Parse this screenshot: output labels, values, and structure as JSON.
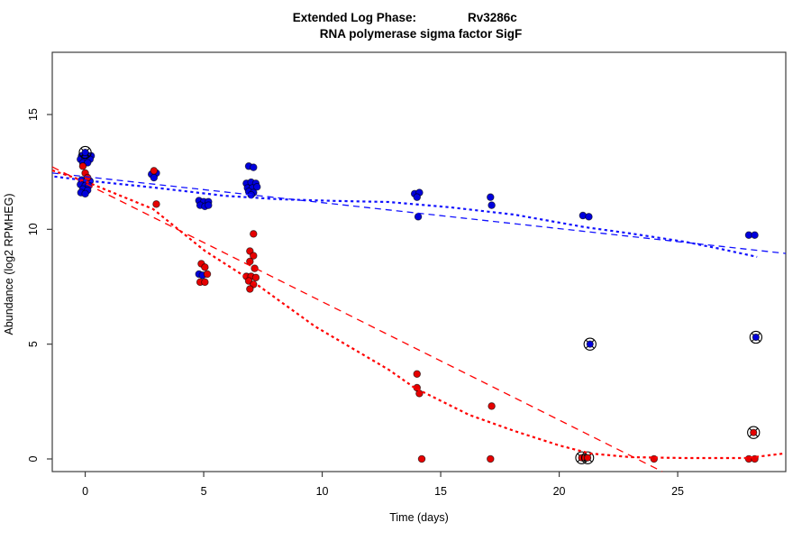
{
  "title": {
    "line1_left": "Extended Log Phase:",
    "line1_right": "Rv3286c",
    "line2": "RNA polymerase sigma factor SigF"
  },
  "axes": {
    "xlabel": "Time (days)",
    "ylabel": "Abundance (log2 RPMHEG)"
  },
  "colors": {
    "blue_point": "#0000dd",
    "red_point": "#e60000",
    "blue_line": "#1111ff",
    "red_line": "#ff0000",
    "axis": "#3c3c3c",
    "marker_outline": "#000000"
  },
  "chart_data": {
    "type": "scatter",
    "title": "Extended Log Phase: Rv3286c — RNA polymerase sigma factor SigF",
    "xlabel": "Time (days)",
    "ylabel": "Abundance (log2 RPMHEG)",
    "xlim": [
      -1.39,
      29.56
    ],
    "ylim": [
      -0.55,
      17.71
    ],
    "x_ticks": [
      0,
      5,
      10,
      15,
      20,
      25
    ],
    "y_ticks": [
      0,
      5,
      10,
      15
    ],
    "grid": false,
    "legend": "none",
    "series": [
      {
        "name": "blue-abundance-points",
        "marker": "filled-circle",
        "color": "#0000dd",
        "points": [
          [
            -0.15,
            13.2
          ],
          [
            0.05,
            13.25
          ],
          [
            0.25,
            13.2
          ],
          [
            -0.2,
            13.05
          ],
          [
            0.0,
            13.1
          ],
          [
            0.2,
            13.05
          ],
          [
            -0.1,
            12.9
          ],
          [
            0.1,
            12.9
          ],
          [
            -0.15,
            12.15
          ],
          [
            0.05,
            12.1
          ],
          [
            0.2,
            12.1
          ],
          [
            -0.2,
            11.95
          ],
          [
            0.0,
            11.9
          ],
          [
            0.15,
            11.9
          ],
          [
            -0.1,
            11.75
          ],
          [
            0.1,
            11.7
          ],
          [
            -0.18,
            11.6
          ],
          [
            0.0,
            11.55
          ],
          [
            2.8,
            12.4
          ],
          [
            3.0,
            12.45
          ],
          [
            2.9,
            12.25
          ],
          [
            4.8,
            11.25
          ],
          [
            5.0,
            11.2
          ],
          [
            5.2,
            11.2
          ],
          [
            4.85,
            11.05
          ],
          [
            5.05,
            11.0
          ],
          [
            5.2,
            11.05
          ],
          [
            4.8,
            8.05
          ],
          [
            4.95,
            8.0
          ],
          [
            6.9,
            12.75
          ],
          [
            7.1,
            12.7
          ],
          [
            6.8,
            12.0
          ],
          [
            7.0,
            12.05
          ],
          [
            7.2,
            12.0
          ],
          [
            6.85,
            11.8
          ],
          [
            7.05,
            11.8
          ],
          [
            7.25,
            11.85
          ],
          [
            6.9,
            11.65
          ],
          [
            7.1,
            11.6
          ],
          [
            7.0,
            11.5
          ],
          [
            13.9,
            11.55
          ],
          [
            14.1,
            11.6
          ],
          [
            14.0,
            11.4
          ],
          [
            14.05,
            10.55
          ],
          [
            17.1,
            11.4
          ],
          [
            17.15,
            11.05
          ],
          [
            21.0,
            10.6
          ],
          [
            21.25,
            10.55
          ],
          [
            28.0,
            9.75
          ],
          [
            28.25,
            9.75
          ]
        ]
      },
      {
        "name": "red-abundance-points",
        "marker": "filled-circle",
        "color": "#e60000",
        "points": [
          [
            -0.1,
            12.75
          ],
          [
            0.0,
            12.45
          ],
          [
            0.1,
            12.25
          ],
          [
            2.9,
            12.55
          ],
          [
            3.0,
            11.1
          ],
          [
            4.9,
            8.5
          ],
          [
            5.05,
            8.35
          ],
          [
            5.15,
            8.05
          ],
          [
            4.85,
            7.7
          ],
          [
            5.05,
            7.7
          ],
          [
            7.1,
            9.8
          ],
          [
            6.95,
            9.05
          ],
          [
            7.1,
            8.85
          ],
          [
            6.95,
            8.6
          ],
          [
            7.15,
            8.3
          ],
          [
            6.8,
            7.95
          ],
          [
            7.0,
            7.95
          ],
          [
            7.2,
            7.9
          ],
          [
            6.9,
            7.75
          ],
          [
            7.1,
            7.6
          ],
          [
            6.95,
            7.4
          ],
          [
            14.0,
            3.7
          ],
          [
            14.0,
            3.1
          ],
          [
            14.1,
            2.85
          ],
          [
            14.2,
            0.0
          ],
          [
            17.15,
            2.3
          ],
          [
            17.1,
            0.0
          ],
          [
            24.0,
            0.0
          ],
          [
            28.0,
            0.0
          ],
          [
            28.25,
            0.0
          ]
        ]
      },
      {
        "name": "blue-circled-x-outliers",
        "marker": "circle-x",
        "color": "#0000dd",
        "points": [
          [
            0.0,
            13.35
          ],
          [
            21.3,
            5.0
          ],
          [
            28.3,
            5.3
          ]
        ]
      },
      {
        "name": "red-circled-x-outliers",
        "marker": "circle-x",
        "color": "#e60000",
        "points": [
          [
            20.95,
            0.05
          ],
          [
            21.2,
            0.05
          ],
          [
            28.2,
            1.15
          ]
        ]
      }
    ],
    "lines": [
      {
        "name": "blue-linear-fit-dashed",
        "style": "dashed",
        "color": "#1111ff",
        "width": 1.3,
        "dash": "7,5",
        "points": [
          [
            -1.39,
            12.45
          ],
          [
            29.56,
            8.95
          ]
        ]
      },
      {
        "name": "red-linear-fit-dashed",
        "style": "dashed",
        "color": "#ff0000",
        "width": 1.3,
        "dash": "8,6",
        "points": [
          [
            -1.39,
            12.72
          ],
          [
            24.35,
            -0.55
          ]
        ]
      },
      {
        "name": "blue-loess-fit-dotted",
        "style": "dotted",
        "color": "#1111ff",
        "width": 2.2,
        "dash": "3.2,3.4",
        "points": [
          [
            -1.3,
            12.3
          ],
          [
            0,
            12.13
          ],
          [
            2.9,
            11.82
          ],
          [
            5.9,
            11.46
          ],
          [
            8.2,
            11.31
          ],
          [
            10.5,
            11.24
          ],
          [
            12.8,
            11.19
          ],
          [
            15.4,
            10.96
          ],
          [
            18.1,
            10.64
          ],
          [
            21.1,
            10.09
          ],
          [
            23.0,
            9.82
          ],
          [
            25.3,
            9.46
          ],
          [
            26.8,
            9.15
          ],
          [
            28.35,
            8.8
          ]
        ]
      },
      {
        "name": "red-loess-fit-dotted",
        "style": "dotted",
        "color": "#ff0000",
        "width": 2.2,
        "dash": "3.2,3.4",
        "points": [
          [
            -1.39,
            12.57
          ],
          [
            0,
            12.09
          ],
          [
            2.87,
            10.88
          ],
          [
            5.04,
            9.07
          ],
          [
            7.05,
            7.74
          ],
          [
            9.7,
            5.77
          ],
          [
            12.8,
            3.89
          ],
          [
            13.9,
            3.1
          ],
          [
            16.2,
            1.92
          ],
          [
            18.1,
            1.22
          ],
          [
            20.0,
            0.59
          ],
          [
            21.3,
            0.24
          ],
          [
            23.0,
            0.08
          ],
          [
            25.3,
            0.04
          ],
          [
            27.9,
            0.04
          ],
          [
            29.5,
            0.24
          ]
        ]
      }
    ]
  }
}
